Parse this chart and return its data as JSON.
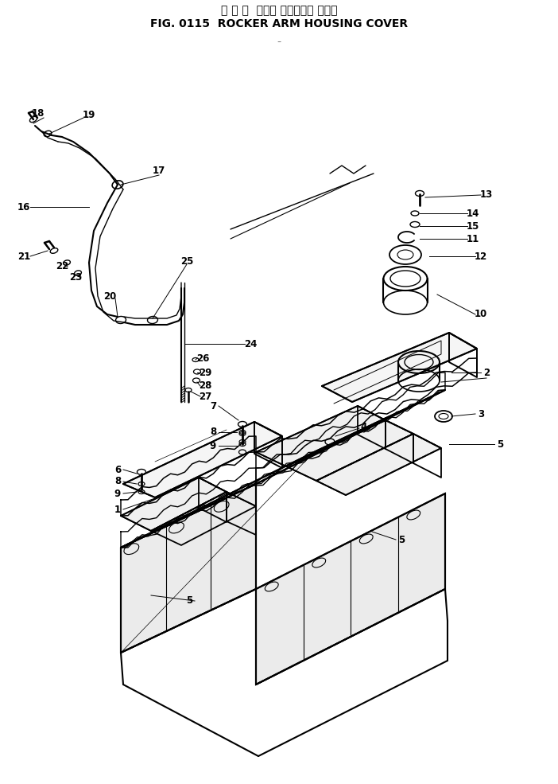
{
  "title_japanese": "ロ ッ カ  アーム ハウジング カバー",
  "title_english": "FIG. 0115  ROCKER ARM HOUSING COVER",
  "bg_color": "#ffffff",
  "figsize": [
    7.02,
    9.85
  ],
  "dpi": 100
}
